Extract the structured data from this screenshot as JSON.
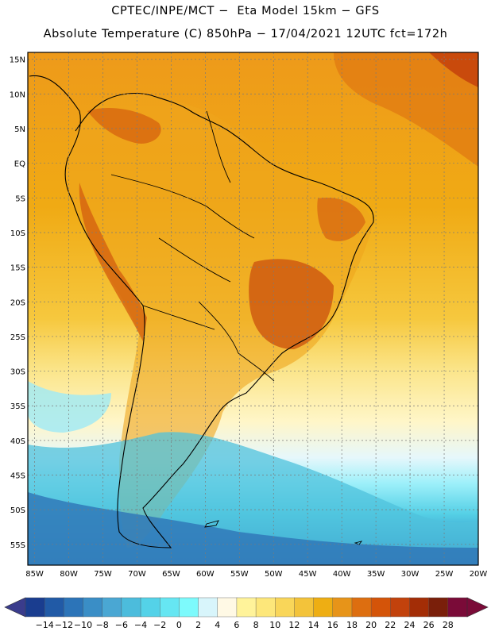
{
  "title": {
    "line1": "CPTEC/INPE/MCT −  Eta Model 15km − GFS",
    "line2": "Absolute Temperature (C) 850hPa − 17/04/2021 12UTC fct=172h"
  },
  "map": {
    "region": "South America",
    "lat_labels": [
      "15N",
      "10N",
      "5N",
      "EQ",
      "5S",
      "10S",
      "15S",
      "20S",
      "25S",
      "30S",
      "35S",
      "40S",
      "45S",
      "50S",
      "55S"
    ],
    "lon_labels": [
      "85W",
      "80W",
      "75W",
      "70W",
      "65W",
      "60W",
      "55W",
      "50W",
      "45W",
      "40W",
      "35W",
      "30W",
      "25W",
      "20W"
    ],
    "lat_range": [
      16,
      -58
    ],
    "lon_range": [
      -86,
      -20
    ],
    "variable": "Absolute Temperature (C) 850hPa"
  },
  "colorbar": {
    "labels": [
      "-14",
      "-12",
      "-10",
      "-8",
      "-6",
      "-4",
      "-2",
      "0",
      "2",
      "4",
      "6",
      "8",
      "10",
      "12",
      "14",
      "16",
      "18",
      "20",
      "22",
      "24",
      "26",
      "28"
    ],
    "colors": [
      "#1a3d8f",
      "#215aa6",
      "#2c74b8",
      "#3a8ec6",
      "#4aa7d3",
      "#4cbcdc",
      "#54d2e8",
      "#66e6f2",
      "#7dfafc",
      "#d8f5fb",
      "#fff9e5",
      "#fff39a",
      "#fde77a",
      "#f9d659",
      "#f3c33a",
      "#eeae13",
      "#e79419",
      "#dd6e10",
      "#d45409",
      "#c2420c",
      "#a32d06",
      "#7a1f0a",
      "#7a0b38"
    ],
    "arrow_left_color": "#3a3c8c",
    "arrow_right_color": "#7a0b38"
  }
}
